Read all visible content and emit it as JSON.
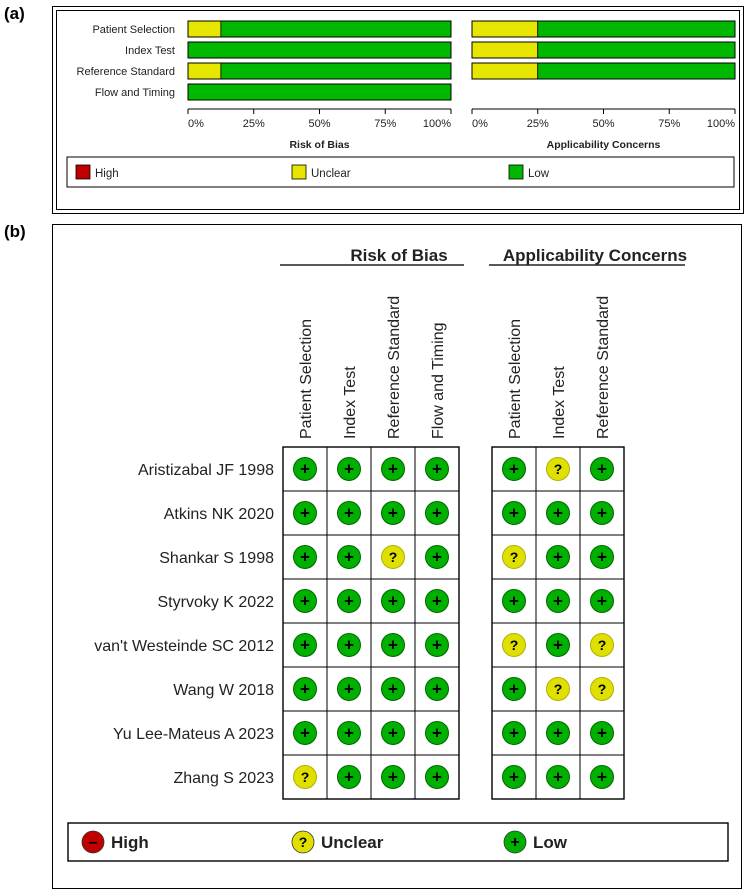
{
  "labels": {
    "panel_a": "(a)",
    "panel_b": "(b)"
  },
  "chart_data": [
    {
      "type": "bar",
      "stacked": true,
      "orientation": "horizontal",
      "title": "Risk of Bias",
      "categories": [
        "Patient Selection",
        "Index Test",
        "Reference Standard",
        "Flow and Timing"
      ],
      "series": [
        {
          "name": "High",
          "values": [
            0,
            0,
            0,
            0
          ]
        },
        {
          "name": "Unclear",
          "values": [
            12.5,
            0,
            12.5,
            0
          ]
        },
        {
          "name": "Low",
          "values": [
            87.5,
            100,
            87.5,
            100
          ]
        }
      ],
      "xlim": [
        0,
        100
      ],
      "ticks": [
        "0%",
        "25%",
        "50%",
        "75%",
        "100%"
      ]
    },
    {
      "type": "bar",
      "stacked": true,
      "orientation": "horizontal",
      "title": "Applicability Concerns",
      "categories": [
        "Patient Selection",
        "Index Test",
        "Reference Standard"
      ],
      "series": [
        {
          "name": "High",
          "values": [
            0,
            0,
            0
          ]
        },
        {
          "name": "Unclear",
          "values": [
            25,
            25,
            25
          ]
        },
        {
          "name": "Low",
          "values": [
            75,
            75,
            75
          ]
        }
      ],
      "xlim": [
        0,
        100
      ],
      "ticks": [
        "0%",
        "25%",
        "50%",
        "75%",
        "100%"
      ]
    },
    {
      "type": "table",
      "groups": [
        {
          "title": "Risk of Bias",
          "columns": [
            "Patient Selection",
            "Index Test",
            "Reference Standard",
            "Flow and Timing"
          ]
        },
        {
          "title": "Applicability Concerns",
          "columns": [
            "Patient Selection",
            "Index Test",
            "Reference Standard"
          ]
        }
      ],
      "rows": [
        {
          "study": "Aristizabal JF 1998",
          "rob": [
            "low",
            "low",
            "low",
            "low"
          ],
          "ac": [
            "low",
            "unclear",
            "low"
          ]
        },
        {
          "study": "Atkins NK 2020",
          "rob": [
            "low",
            "low",
            "low",
            "low"
          ],
          "ac": [
            "low",
            "low",
            "low"
          ]
        },
        {
          "study": "Shankar S 1998",
          "rob": [
            "low",
            "low",
            "unclear",
            "low"
          ],
          "ac": [
            "unclear",
            "low",
            "low"
          ]
        },
        {
          "study": "Styrvoky K 2022",
          "rob": [
            "low",
            "low",
            "low",
            "low"
          ],
          "ac": [
            "low",
            "low",
            "low"
          ]
        },
        {
          "study": "van't Westeinde SC 2012",
          "rob": [
            "low",
            "low",
            "low",
            "low"
          ],
          "ac": [
            "unclear",
            "low",
            "unclear"
          ]
        },
        {
          "study": "Wang W 2018",
          "rob": [
            "low",
            "low",
            "low",
            "low"
          ],
          "ac": [
            "low",
            "unclear",
            "unclear"
          ]
        },
        {
          "study": "Yu Lee-Mateus A 2023",
          "rob": [
            "low",
            "low",
            "low",
            "low"
          ],
          "ac": [
            "low",
            "low",
            "low"
          ]
        },
        {
          "study": "Zhang S 2023",
          "rob": [
            "unclear",
            "low",
            "low",
            "low"
          ],
          "ac": [
            "low",
            "low",
            "low"
          ]
        }
      ],
      "legend": [
        {
          "key": "high",
          "label": "High",
          "symbol": "–"
        },
        {
          "key": "unclear",
          "label": "Unclear",
          "symbol": "?"
        },
        {
          "key": "low",
          "label": "Low",
          "symbol": "+"
        }
      ]
    }
  ],
  "colors": {
    "high": "#c00000",
    "unclear": "#e6e600",
    "low": "#00b800",
    "unclear_circle": "#e0e000",
    "low_circle": "#00b000"
  }
}
